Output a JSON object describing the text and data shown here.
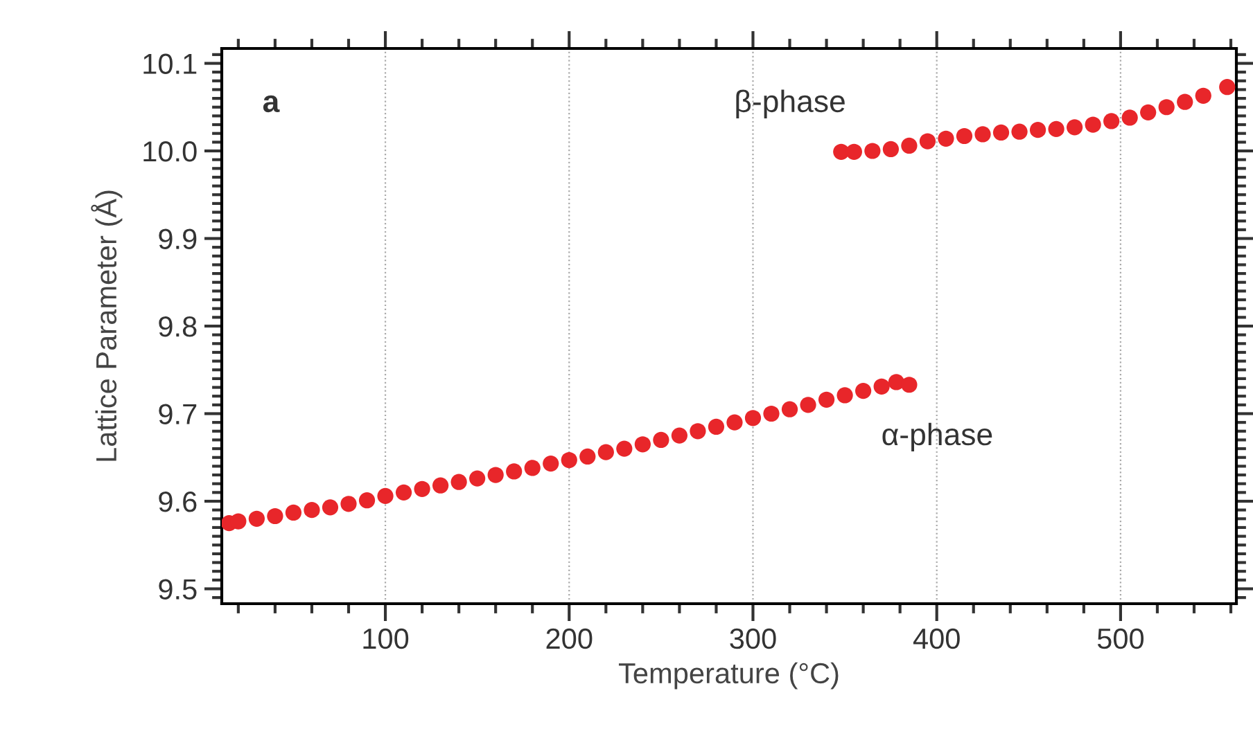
{
  "chart_data": {
    "type": "scatter",
    "xlabel": "Temperature (°C)",
    "ylabel": "Lattice Parameter (Å)",
    "annotations": [
      "a",
      "β-phase",
      "α-phase"
    ],
    "xlim": [
      11,
      563
    ],
    "ylim": [
      9.483,
      10.117
    ],
    "xticks": [
      100,
      200,
      300,
      400,
      500
    ],
    "yticks": [
      9.5,
      9.6,
      9.7,
      9.8,
      9.9,
      {
        "value": 10,
        "label": "10.0"
      },
      10.1
    ],
    "grid": "x",
    "marker": "circle",
    "series": [
      {
        "color": "#e8262a",
        "x": [
          15,
          20,
          30,
          40,
          50,
          60,
          70,
          80,
          90,
          100,
          110,
          120,
          130,
          140,
          150,
          160,
          170,
          180,
          190,
          200,
          210,
          220,
          230,
          240,
          250,
          260,
          270,
          280,
          290,
          300,
          310,
          320,
          330,
          340,
          350,
          360,
          370,
          378,
          385
        ],
        "values": [
          9.575,
          9.577,
          9.58,
          9.583,
          9.587,
          9.59,
          9.593,
          9.597,
          9.601,
          9.606,
          9.61,
          9.614,
          9.618,
          9.622,
          9.626,
          9.63,
          9.634,
          9.638,
          9.643,
          9.647,
          9.651,
          9.656,
          9.66,
          9.665,
          9.67,
          9.675,
          9.68,
          9.685,
          9.69,
          9.695,
          9.7,
          9.705,
          9.71,
          9.716,
          9.721,
          9.726,
          9.731,
          9.736,
          9.733
        ]
      },
      {
        "color": "#e8262a",
        "x": [
          348,
          355,
          365,
          375,
          385,
          395,
          405,
          415,
          425,
          435,
          445,
          455,
          465,
          475,
          485,
          495,
          505,
          515,
          525,
          535,
          545,
          558
        ],
        "values": [
          9.999,
          9.999,
          10.0,
          10.002,
          10.006,
          10.011,
          10.014,
          10.017,
          10.019,
          10.021,
          10.022,
          10.024,
          10.025,
          10.027,
          10.03,
          10.034,
          10.038,
          10.044,
          10.05,
          10.056,
          10.063,
          10.073
        ]
      }
    ]
  }
}
